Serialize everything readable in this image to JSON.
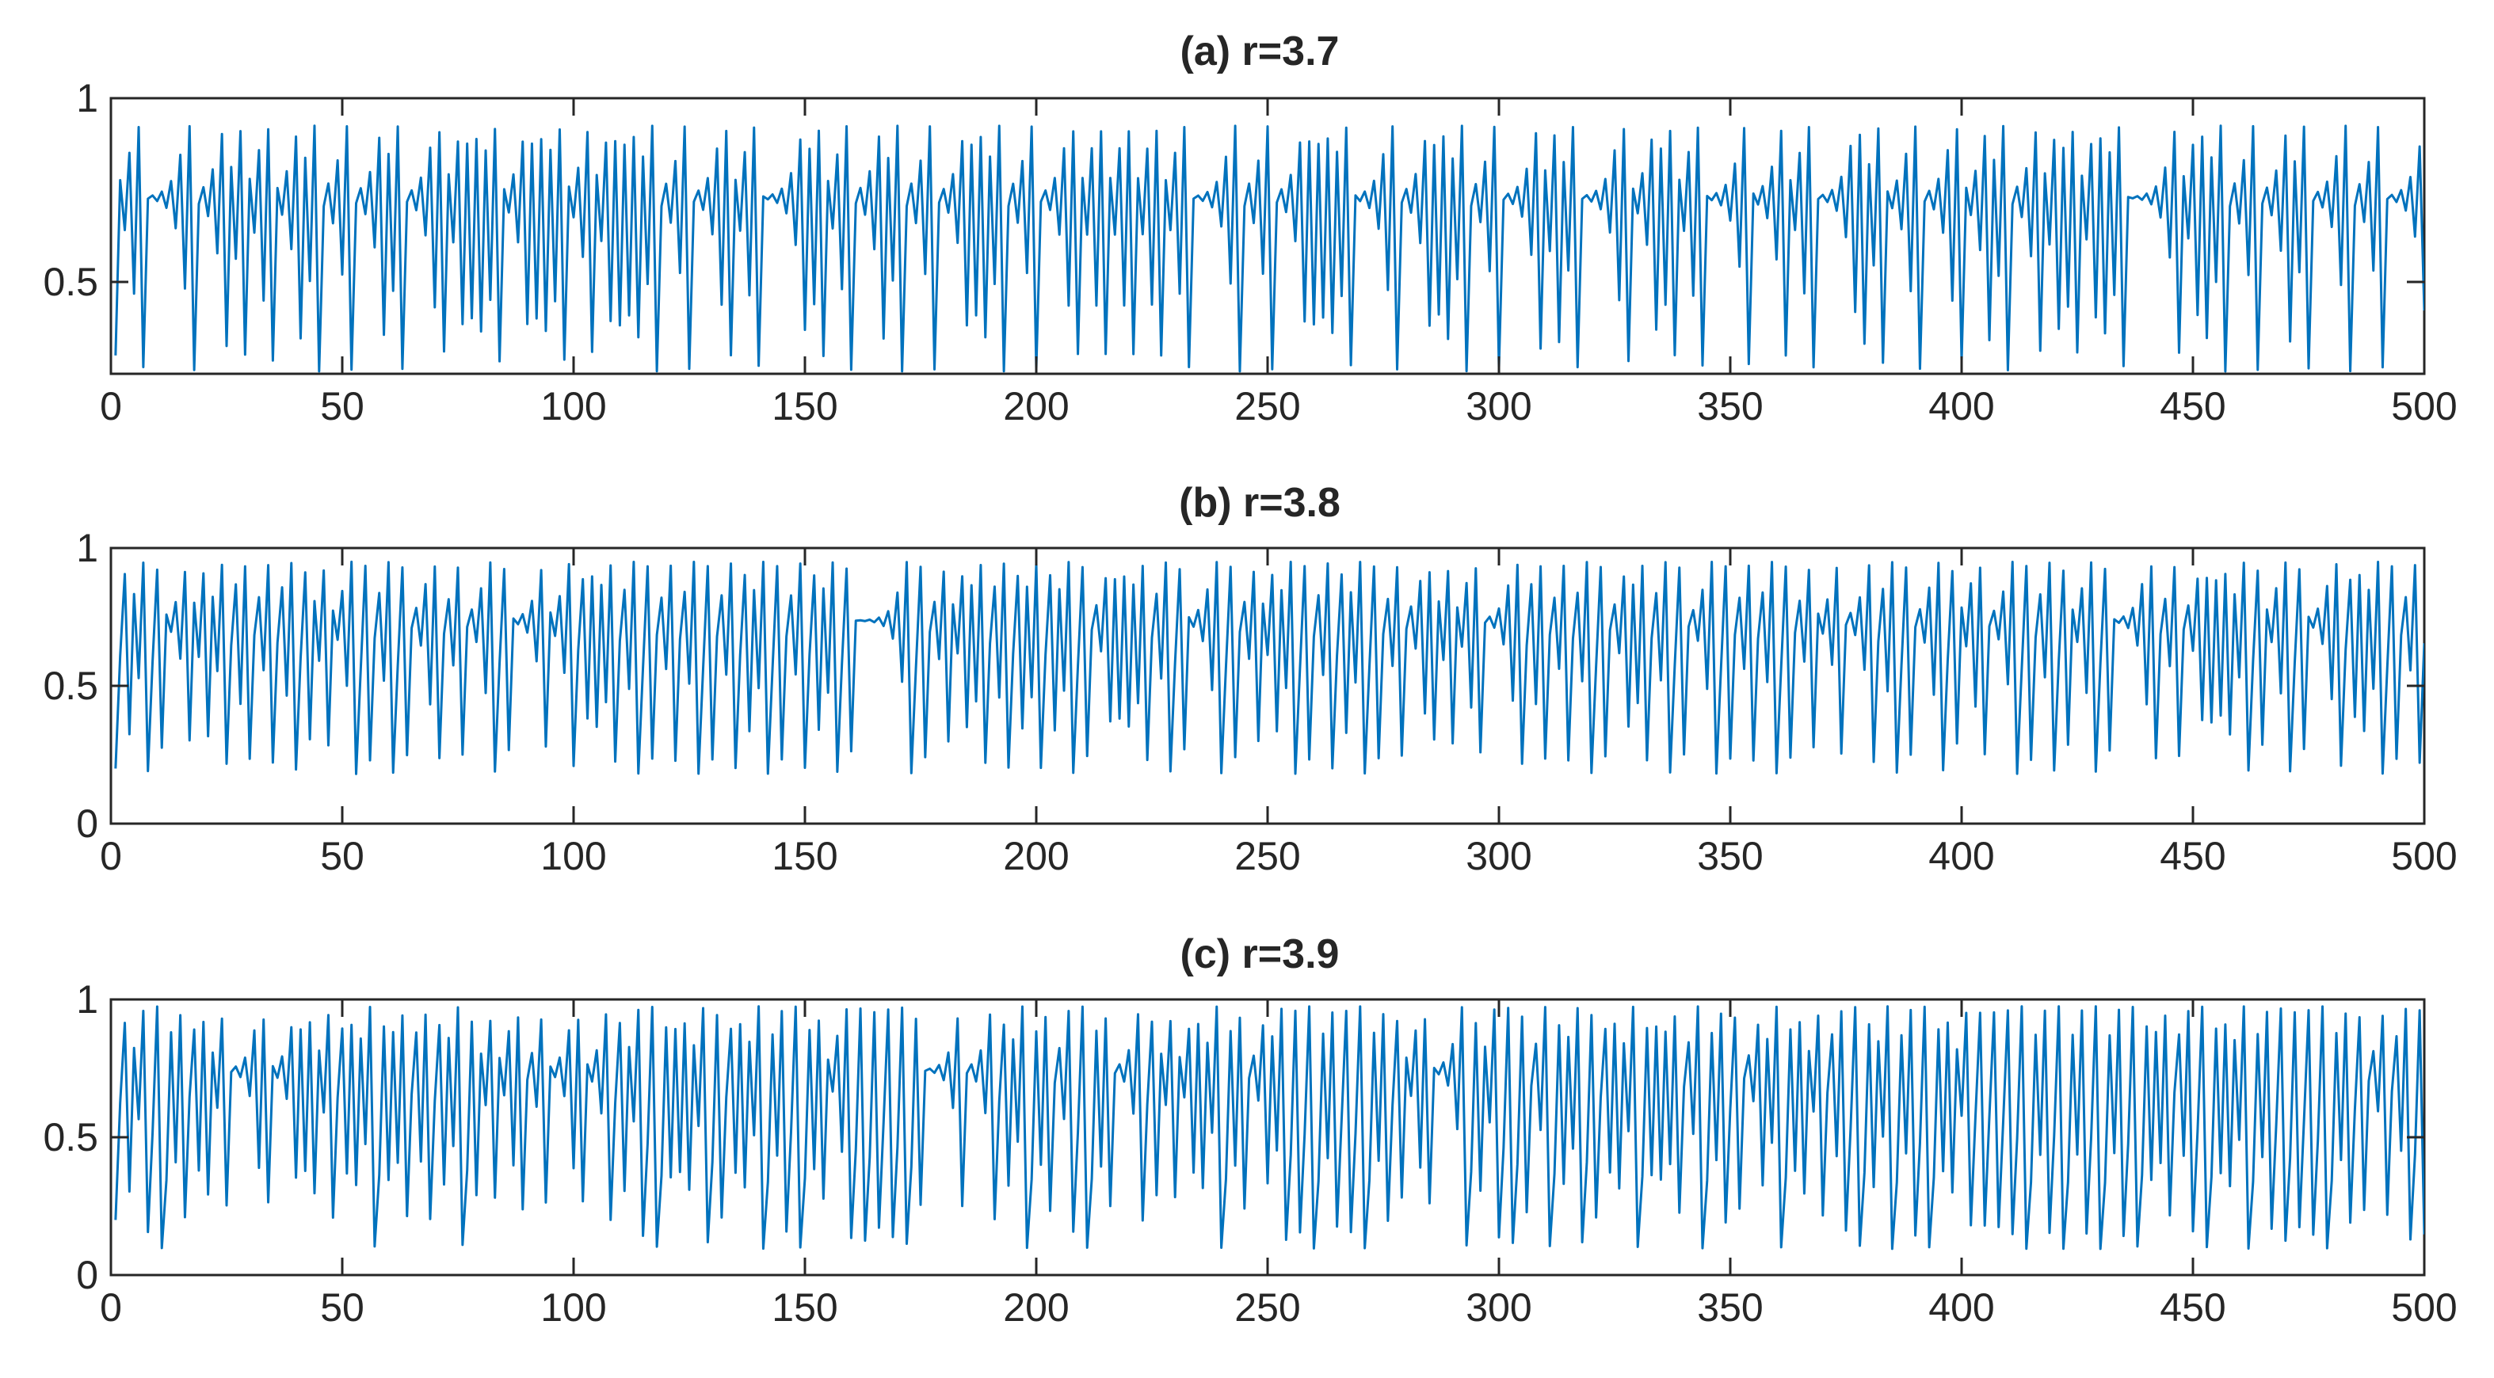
{
  "chart_data": [
    {
      "type": "line",
      "title": "(a) r=3.7",
      "r": 3.7,
      "x0": 0.3,
      "xlim": [
        0,
        500
      ],
      "ylim": [
        0.25,
        1
      ],
      "xticks": [
        0,
        50,
        100,
        150,
        200,
        250,
        300,
        350,
        400,
        450,
        500
      ],
      "yticks": [
        0.5,
        1
      ],
      "xtick_labels": [
        "0",
        "50",
        "100",
        "150",
        "200",
        "250",
        "300",
        "350",
        "400",
        "450",
        "500"
      ],
      "ytick_labels": [
        "0.5",
        "1"
      ],
      "series": [
        {
          "model": "logistic map x(n+1) = r·x(n)·(1 − x(n))",
          "n_points": 500,
          "color": "#0072BD"
        }
      ]
    },
    {
      "type": "line",
      "title": "(b) r=3.8",
      "r": 3.8,
      "x0": 0.2,
      "xlim": [
        0,
        500
      ],
      "ylim": [
        0,
        1
      ],
      "xticks": [
        0,
        50,
        100,
        150,
        200,
        250,
        300,
        350,
        400,
        450,
        500
      ],
      "yticks": [
        0,
        0.5,
        1
      ],
      "xtick_labels": [
        "0",
        "50",
        "100",
        "150",
        "200",
        "250",
        "300",
        "350",
        "400",
        "450",
        "500"
      ],
      "ytick_labels": [
        "0",
        "0.5",
        "1"
      ],
      "series": [
        {
          "model": "logistic map x(n+1) = r·x(n)·(1 − x(n))",
          "n_points": 500,
          "color": "#0072BD"
        }
      ]
    },
    {
      "type": "line",
      "title": "(c) r=3.9",
      "r": 3.9,
      "x0": 0.2,
      "xlim": [
        0,
        500
      ],
      "ylim": [
        0,
        1
      ],
      "xticks": [
        0,
        50,
        100,
        150,
        200,
        250,
        300,
        350,
        400,
        450,
        500
      ],
      "yticks": [
        0,
        0.5,
        1
      ],
      "xtick_labels": [
        "0",
        "50",
        "100",
        "150",
        "200",
        "250",
        "300",
        "350",
        "400",
        "450",
        "500"
      ],
      "ytick_labels": [
        "0",
        "0.5",
        "1"
      ],
      "series": [
        {
          "model": "logistic map x(n+1) = r·x(n)·(1 − x(n))",
          "n_points": 500,
          "color": "#0072BD"
        }
      ]
    }
  ]
}
